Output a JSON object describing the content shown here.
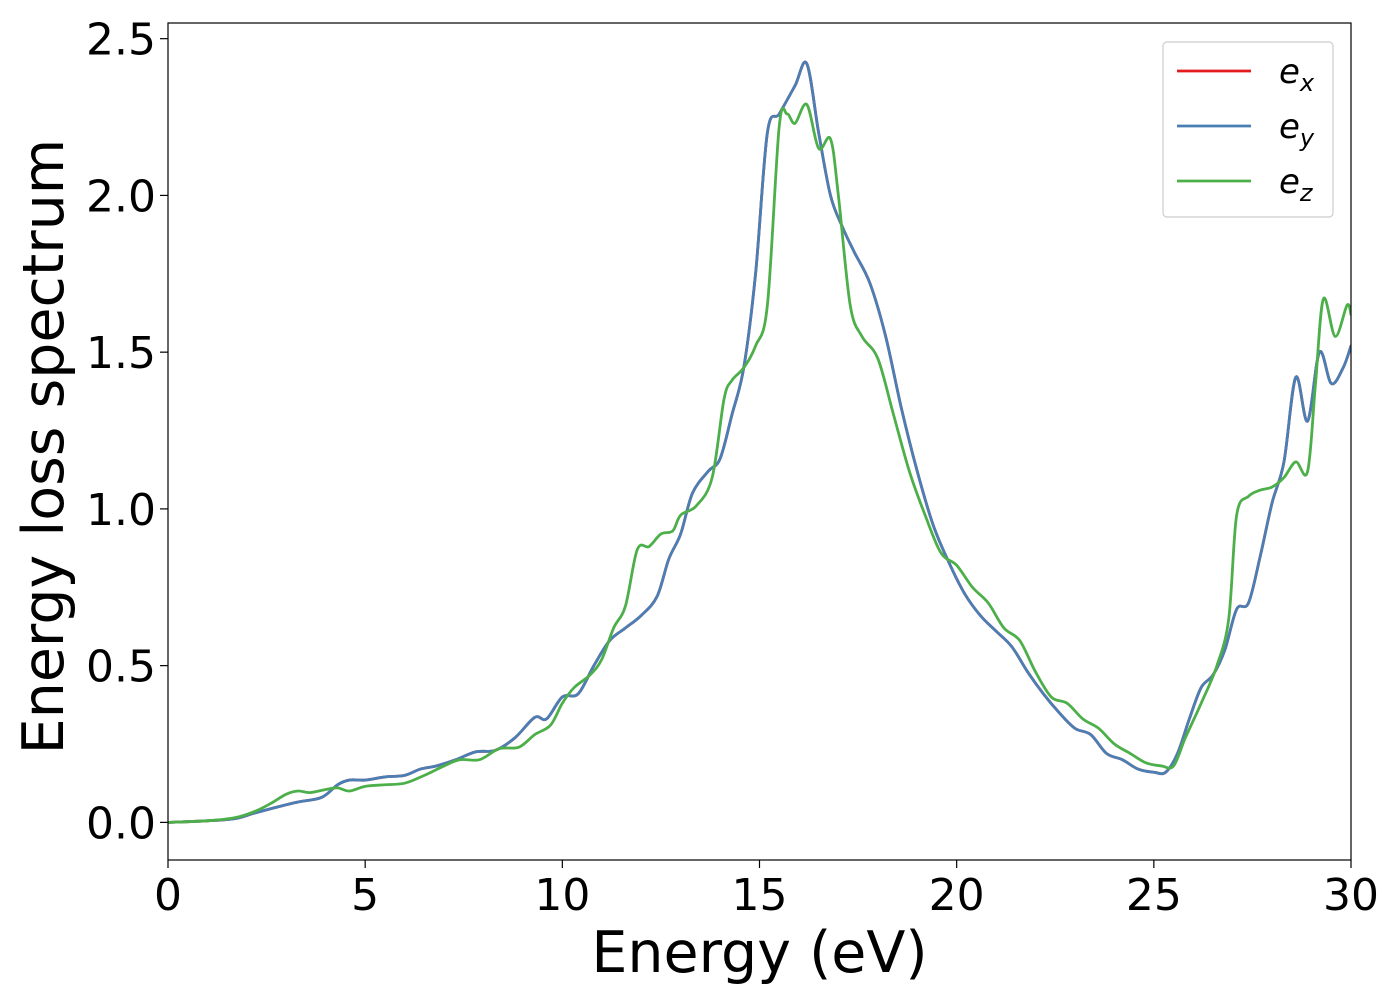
{
  "chart_data": {
    "type": "line",
    "title": "",
    "xlabel": "Energy (eV)",
    "ylabel": "Energy loss spectrum",
    "xlim": [
      0,
      30
    ],
    "ylim": [
      -0.12,
      2.55
    ],
    "xticks": [
      0,
      5,
      10,
      15,
      20,
      25,
      30
    ],
    "yticks": [
      0.0,
      0.5,
      1.0,
      1.5,
      2.0,
      2.5
    ],
    "xtick_labels": [
      "0",
      "5",
      "10",
      "15",
      "20",
      "25",
      "30"
    ],
    "ytick_labels": [
      "0.0",
      "0.5",
      "1.0",
      "1.5",
      "2.0",
      "2.5"
    ],
    "grid": false,
    "legend_position": "top-right",
    "series": [
      {
        "name": "e_x",
        "label_main": "e",
        "label_sub": "x",
        "color": "#e41a1c",
        "x": [
          0,
          1,
          1.7,
          2.2,
          2.8,
          3.3,
          3.9,
          4.3,
          4.6,
          5.0,
          5.5,
          6.0,
          6.4,
          6.8,
          7.3,
          7.8,
          8.3,
          8.8,
          9.3,
          9.6,
          10.0,
          10.4,
          10.8,
          11.2,
          11.6,
          12.0,
          12.4,
          12.7,
          13.0,
          13.3,
          13.7,
          14.0,
          14.3,
          14.6,
          14.9,
          15.2,
          15.5,
          15.9,
          16.2,
          16.5,
          16.8,
          17.1,
          17.4,
          17.8,
          18.2,
          18.6,
          19.0,
          19.4,
          19.8,
          20.2,
          20.6,
          21.0,
          21.4,
          21.8,
          22.2,
          22.6,
          23.0,
          23.4,
          23.8,
          24.2,
          24.6,
          25.0,
          25.3,
          25.6,
          25.9,
          26.2,
          26.5,
          26.8,
          27.1,
          27.4,
          27.7,
          28.0,
          28.3,
          28.6,
          28.9,
          29.2,
          29.5,
          29.8,
          30.0
        ],
        "values": [
          0.0,
          0.005,
          0.012,
          0.03,
          0.05,
          0.065,
          0.08,
          0.12,
          0.135,
          0.135,
          0.145,
          0.15,
          0.17,
          0.18,
          0.2,
          0.225,
          0.23,
          0.27,
          0.335,
          0.33,
          0.4,
          0.41,
          0.5,
          0.58,
          0.62,
          0.66,
          0.72,
          0.84,
          0.92,
          1.05,
          1.12,
          1.16,
          1.3,
          1.45,
          1.75,
          2.2,
          2.26,
          2.35,
          2.42,
          2.2,
          2.0,
          1.9,
          1.82,
          1.72,
          1.55,
          1.32,
          1.12,
          0.95,
          0.83,
          0.73,
          0.66,
          0.61,
          0.56,
          0.48,
          0.41,
          0.35,
          0.3,
          0.28,
          0.22,
          0.2,
          0.17,
          0.16,
          0.16,
          0.22,
          0.33,
          0.43,
          0.47,
          0.55,
          0.68,
          0.7,
          0.85,
          1.02,
          1.15,
          1.42,
          1.28,
          1.5,
          1.4,
          1.45,
          1.52
        ]
      },
      {
        "name": "e_y",
        "label_main": "e",
        "label_sub": "y",
        "color": "#4a7fb5",
        "x": [
          0,
          1,
          1.7,
          2.2,
          2.8,
          3.3,
          3.9,
          4.3,
          4.6,
          5.0,
          5.5,
          6.0,
          6.4,
          6.8,
          7.3,
          7.8,
          8.3,
          8.8,
          9.3,
          9.6,
          10.0,
          10.4,
          10.8,
          11.2,
          11.6,
          12.0,
          12.4,
          12.7,
          13.0,
          13.3,
          13.7,
          14.0,
          14.3,
          14.6,
          14.9,
          15.2,
          15.5,
          15.9,
          16.2,
          16.5,
          16.8,
          17.1,
          17.4,
          17.8,
          18.2,
          18.6,
          19.0,
          19.4,
          19.8,
          20.2,
          20.6,
          21.0,
          21.4,
          21.8,
          22.2,
          22.6,
          23.0,
          23.4,
          23.8,
          24.2,
          24.6,
          25.0,
          25.3,
          25.6,
          25.9,
          26.2,
          26.5,
          26.8,
          27.1,
          27.4,
          27.7,
          28.0,
          28.3,
          28.6,
          28.9,
          29.2,
          29.5,
          29.8,
          30.0
        ],
        "values": [
          0.0,
          0.005,
          0.012,
          0.03,
          0.05,
          0.065,
          0.08,
          0.12,
          0.135,
          0.135,
          0.145,
          0.15,
          0.17,
          0.18,
          0.2,
          0.225,
          0.23,
          0.27,
          0.335,
          0.33,
          0.4,
          0.41,
          0.5,
          0.58,
          0.62,
          0.66,
          0.72,
          0.84,
          0.92,
          1.05,
          1.12,
          1.16,
          1.3,
          1.45,
          1.75,
          2.2,
          2.26,
          2.35,
          2.42,
          2.2,
          2.0,
          1.9,
          1.82,
          1.72,
          1.55,
          1.32,
          1.12,
          0.95,
          0.83,
          0.73,
          0.66,
          0.61,
          0.56,
          0.48,
          0.41,
          0.35,
          0.3,
          0.28,
          0.22,
          0.2,
          0.17,
          0.16,
          0.16,
          0.22,
          0.33,
          0.43,
          0.47,
          0.55,
          0.68,
          0.7,
          0.85,
          1.02,
          1.15,
          1.42,
          1.28,
          1.5,
          1.4,
          1.45,
          1.52
        ]
      },
      {
        "name": "e_z",
        "label_main": "e",
        "label_sub": "z",
        "color": "#4daf4a",
        "x": [
          0,
          1,
          1.7,
          2.2,
          2.6,
          3.0,
          3.3,
          3.6,
          4.0,
          4.3,
          4.6,
          5.0,
          5.5,
          6.0,
          6.5,
          7.0,
          7.4,
          7.9,
          8.4,
          8.9,
          9.3,
          9.7,
          10.0,
          10.3,
          10.7,
          11.0,
          11.3,
          11.6,
          11.9,
          12.2,
          12.5,
          12.8,
          13.0,
          13.4,
          13.8,
          14.1,
          14.3,
          14.6,
          14.9,
          15.2,
          15.5,
          15.7,
          15.9,
          16.2,
          16.5,
          16.8,
          17.0,
          17.3,
          17.6,
          18.0,
          18.4,
          18.8,
          19.2,
          19.6,
          20.0,
          20.4,
          20.8,
          21.2,
          21.6,
          22.0,
          22.4,
          22.8,
          23.2,
          23.6,
          24.0,
          24.4,
          24.8,
          25.2,
          25.5,
          25.8,
          26.2,
          26.6,
          26.9,
          27.1,
          27.4,
          27.7,
          28.0,
          28.3,
          28.6,
          28.9,
          29.1,
          29.3,
          29.6,
          29.9,
          30.0
        ],
        "values": [
          0.0,
          0.005,
          0.015,
          0.035,
          0.06,
          0.09,
          0.1,
          0.095,
          0.105,
          0.11,
          0.1,
          0.115,
          0.12,
          0.125,
          0.15,
          0.18,
          0.2,
          0.2,
          0.235,
          0.24,
          0.28,
          0.31,
          0.38,
          0.43,
          0.47,
          0.52,
          0.62,
          0.69,
          0.87,
          0.88,
          0.92,
          0.93,
          0.98,
          1.01,
          1.1,
          1.35,
          1.41,
          1.45,
          1.52,
          1.65,
          2.22,
          2.26,
          2.23,
          2.29,
          2.15,
          2.18,
          2.0,
          1.65,
          1.55,
          1.48,
          1.3,
          1.12,
          0.98,
          0.86,
          0.82,
          0.75,
          0.7,
          0.62,
          0.58,
          0.48,
          0.4,
          0.38,
          0.33,
          0.3,
          0.25,
          0.22,
          0.19,
          0.18,
          0.18,
          0.27,
          0.38,
          0.5,
          0.65,
          0.98,
          1.04,
          1.06,
          1.07,
          1.1,
          1.15,
          1.12,
          1.4,
          1.67,
          1.55,
          1.65,
          1.62
        ]
      }
    ]
  }
}
